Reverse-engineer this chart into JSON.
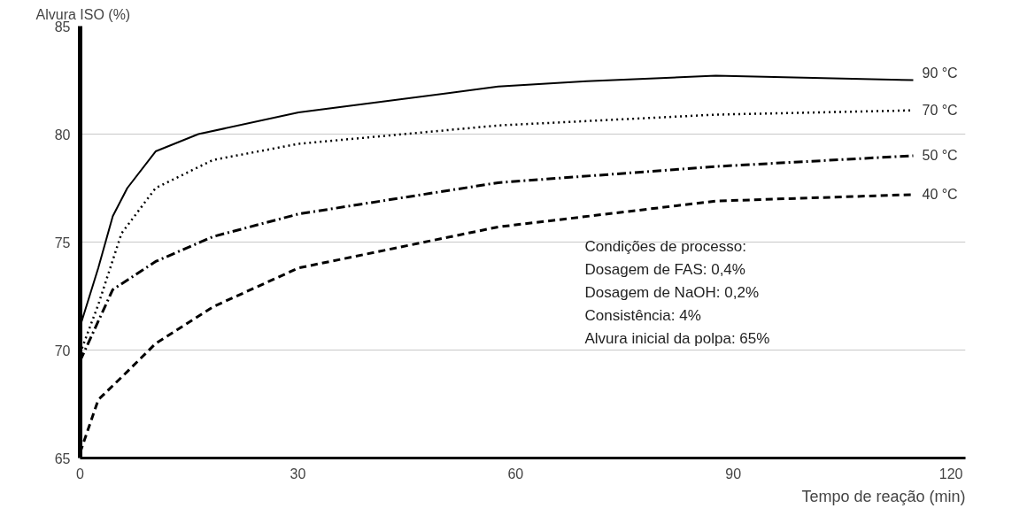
{
  "chart_data": {
    "type": "line",
    "xlabel": "Tempo de reação (min)",
    "ylabel": "Alvura ISO (%)",
    "xlim": [
      0,
      122
    ],
    "ylim": [
      65,
      85
    ],
    "xticks": [
      0,
      30,
      60,
      90,
      120
    ],
    "yticks": [
      65,
      70,
      75,
      80,
      85
    ],
    "grid": "y",
    "marker": "none",
    "series": [
      {
        "name": "90 °C",
        "color": "#000000",
        "line_style": "solid",
        "x": [
          0,
          2.5,
          4.5,
          6.5,
          10.4,
          16.3,
          30.1,
          57.6,
          69.8,
          87.6,
          114.8
        ],
        "values": [
          71.1,
          73.8,
          76.2,
          77.5,
          79.2,
          80.0,
          81.0,
          82.2,
          82.45,
          82.7,
          82.5
        ]
      },
      {
        "name": "70 °C",
        "color": "#000000",
        "line_style": "dotted",
        "x": [
          0,
          2.5,
          5.7,
          10.4,
          18.3,
          30.1,
          57.6,
          87.6,
          114.8
        ],
        "values": [
          69.85,
          72.1,
          75.4,
          77.5,
          78.8,
          79.55,
          80.4,
          80.9,
          81.1
        ]
      },
      {
        "name": "50 °C",
        "color": "#000000",
        "line_style": "dashdot",
        "x": [
          0,
          4.5,
          10.4,
          18.3,
          30.1,
          57.6,
          87.6,
          114.8
        ],
        "values": [
          69.5,
          72.8,
          74.1,
          75.25,
          76.3,
          77.75,
          78.5,
          79.0
        ]
      },
      {
        "name": "40 °C",
        "color": "#000000",
        "line_style": "dashed",
        "x": [
          0,
          2.5,
          6.5,
          10.4,
          18.3,
          30.1,
          57.6,
          87.6,
          114.8
        ],
        "values": [
          65.25,
          67.7,
          69.0,
          70.3,
          72.0,
          73.8,
          75.7,
          76.9,
          77.2
        ]
      }
    ],
    "annotations": [
      "Condições de processo:",
      "Dosagem de FAS: 0,4%",
      "Dosagem de NaOH: 0,2%",
      "Consistência: 4%",
      "Alvura inicial da polpa: 65%"
    ]
  }
}
